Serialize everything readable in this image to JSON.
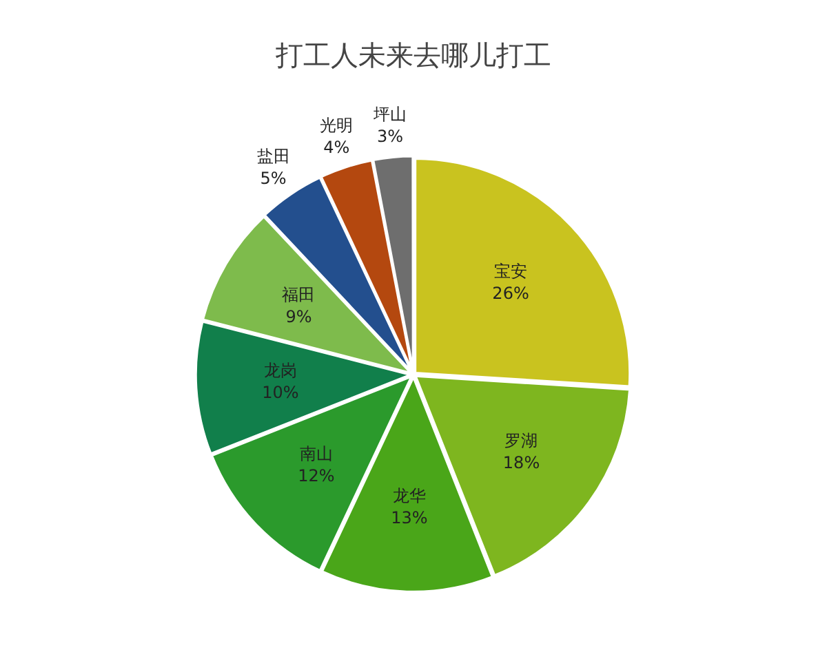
{
  "chart_data": {
    "type": "pie",
    "title": "打工人未来去哪儿打工",
    "categories": [
      "宝安",
      "罗湖",
      "龙华",
      "南山",
      "龙岗",
      "福田",
      "盐田",
      "光明",
      "坪山"
    ],
    "values": [
      26,
      18,
      13,
      12,
      10,
      9,
      5,
      4,
      3
    ],
    "value_labels": [
      "26%",
      "18%",
      "13%",
      "12%",
      "10%",
      "9%",
      "5%",
      "4%",
      "3%"
    ],
    "colors": [
      "#c9c31f",
      "#7eb61f",
      "#4aa619",
      "#2b9a2c",
      "#117f4b",
      "#7ebb4c",
      "#234f8e",
      "#b4480f",
      "#6e6e6e"
    ],
    "legend": false
  }
}
